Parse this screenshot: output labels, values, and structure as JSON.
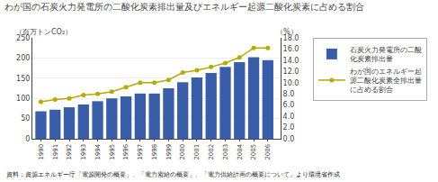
{
  "chart_data": {
    "type": "bar",
    "title": "わが国の石炭火力発電所の二酸化炭素排出量及びエネルギー起源二酸化炭素に占める割合",
    "ylabel": "（百万トンCO₂）",
    "y2label": "（%）",
    "footnote": "資料：資源エネルギー庁「電源開発の概要」、「電力需給の概要」、「電力供給計画の概要について」より環境省作成",
    "x": [
      1990,
      1991,
      1992,
      1993,
      1994,
      1995,
      1996,
      1997,
      1998,
      1999,
      2000,
      2001,
      2002,
      2003,
      2004,
      2005,
      2006
    ],
    "xlim": [
      1989.4,
      2006.9
    ],
    "xticks": [
      1990,
      1991,
      1992,
      1993,
      1994,
      1995,
      1996,
      1997,
      1998,
      1999,
      2000,
      2001,
      2002,
      2003,
      2004,
      2005,
      2006
    ],
    "series": [
      {
        "name": "石炭火力発電所の二酸化炭素排出量",
        "type": "bar",
        "color": "#3a5da8",
        "values": [
          68,
          72,
          78,
          85,
          93,
          100,
          105,
          112,
          112,
          125,
          140,
          152,
          163,
          178,
          190,
          202,
          195
        ]
      },
      {
        "name": "わが国のエネルギー起源二酸化炭素全排出量に占める割合",
        "type": "line",
        "axis": "y2",
        "color": "#b8a800",
        "marker": "circle",
        "values": [
          6.6,
          7.0,
          7.2,
          7.8,
          8.0,
          8.4,
          9.2,
          10.0,
          10.0,
          10.5,
          11.8,
          12.2,
          12.8,
          13.5,
          14.5,
          16.2,
          16.2
        ]
      }
    ],
    "ylim": [
      0,
      250
    ],
    "yticks": [
      0,
      50,
      100,
      150,
      200,
      250
    ],
    "y2lim": [
      0.0,
      18.0
    ],
    "y2ticks": [
      {
        "value": 0,
        "label": "0.0"
      },
      {
        "value": 2,
        "label": "2.0"
      },
      {
        "value": 4,
        "label": "4.0"
      },
      {
        "value": 6,
        "label": "6.0"
      },
      {
        "value": 8,
        "label": "8.0"
      },
      {
        "value": 10,
        "label": "10.0"
      },
      {
        "value": 12,
        "label": "12.0"
      },
      {
        "value": 14,
        "label": "14.0"
      },
      {
        "value": 16,
        "label": "16.0"
      },
      {
        "value": 18,
        "label": "18.0"
      }
    ],
    "grid": true,
    "legend": "right"
  }
}
